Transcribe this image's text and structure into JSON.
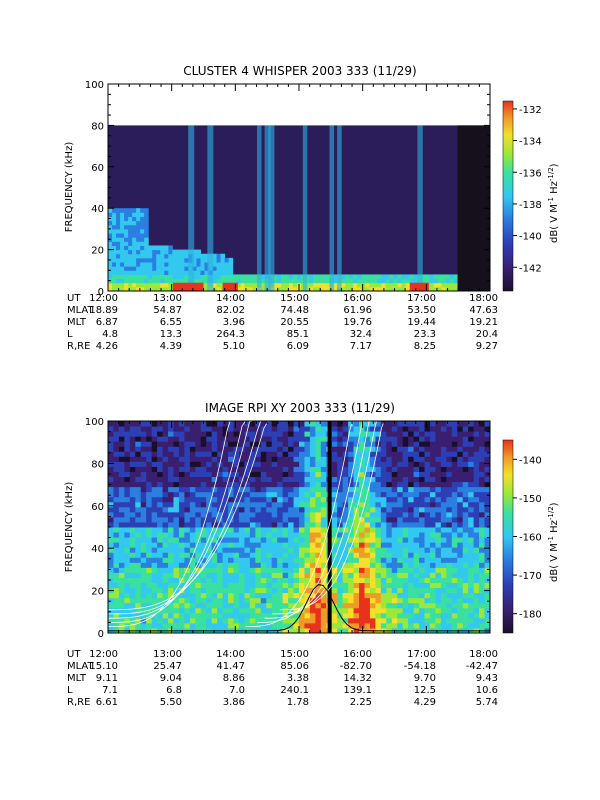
{
  "chart_data": [
    {
      "type": "heatmap",
      "title": "CLUSTER 4 WHISPER 2003 333 (11/29)",
      "ylabel": "FREQUENCY (kHz)",
      "ylim": [
        0,
        100
      ],
      "y_ticks": [
        "0",
        "20",
        "40",
        "60",
        "80",
        "100"
      ],
      "data_top_khz": 80,
      "x_ticks": [
        "12:00",
        "13:00",
        "14:00",
        "15:00",
        "16:00",
        "17:00",
        "18:00"
      ],
      "colorbar": {
        "label": "dB( V M⁻¹ Hz⁻¹ᐟ²)",
        "label_main": "dB( V M",
        "label_sup1": "-1",
        "label_mid": "Hz",
        "label_sup2": "-1/2",
        "label_end": ")",
        "range": [
          -143.5,
          -131.5
        ],
        "ticks": [
          "-132",
          "-134",
          "-136",
          "-138",
          "-140",
          "-142"
        ],
        "tick_values": [
          -132,
          -134,
          -136,
          -138,
          -140,
          -142
        ]
      },
      "ephemeris": {
        "rows": [
          {
            "label": "UT",
            "values": [
              "12:00",
              "13:00",
              "14:00",
              "15:00",
              "16:00",
              "17:00",
              "18:00"
            ]
          },
          {
            "label": "MLAT",
            "values": [
              "18.89",
              "54.87",
              "82.02",
              "74.48",
              "61.96",
              "53.50",
              "47.63"
            ]
          },
          {
            "label": "MLT",
            "values": [
              "6.87",
              "6.55",
              "3.96",
              "20.55",
              "19.76",
              "19.44",
              "19.21"
            ]
          },
          {
            "label": "L",
            "values": [
              "4.8",
              "13.3",
              "264.3",
              "85.1",
              "32.4",
              "23.3",
              "20.4"
            ]
          },
          {
            "label": "R,RE",
            "values": [
              "4.26",
              "4.39",
              "5.10",
              "6.09",
              "7.17",
              "8.25",
              "9.27"
            ]
          }
        ]
      }
    },
    {
      "type": "heatmap",
      "title": "IMAGE RPI XY 2003 333 (11/29)",
      "ylabel": "FREQUENCY (kHz)",
      "ylim": [
        0,
        100
      ],
      "y_ticks": [
        "0",
        "20",
        "40",
        "60",
        "80",
        "100"
      ],
      "x_ticks": [
        "12:00",
        "13:00",
        "14:00",
        "15:00",
        "16:00",
        "17:00",
        "18:00"
      ],
      "colorbar": {
        "label_main": "dB( V M",
        "label_sup1": "-1",
        "label_mid": "Hz",
        "label_sup2": "-1/2",
        "label_end": ")",
        "range": [
          -185,
          -135
        ],
        "ticks": [
          "-140",
          "-150",
          "-160",
          "-170",
          "-180"
        ],
        "tick_values": [
          -140,
          -150,
          -160,
          -170,
          -180
        ]
      },
      "ephemeris": {
        "rows": [
          {
            "label": "UT",
            "values": [
              "12:00",
              "13:00",
              "14:00",
              "15:00",
              "16:00",
              "17:00",
              "18:00"
            ]
          },
          {
            "label": "MLAT",
            "values": [
              "15.10",
              "25.47",
              "41.47",
              "85.06",
              "-82.70",
              "-54.18",
              "-42.47"
            ]
          },
          {
            "label": "MLT",
            "values": [
              "9.11",
              "9.04",
              "8.86",
              "3.38",
              "14.32",
              "9.70",
              "9.43"
            ]
          },
          {
            "label": "L",
            "values": [
              "7.1",
              "6.8",
              "7.0",
              "240.1",
              "139.1",
              "12.5",
              "10.6"
            ]
          },
          {
            "label": "R,RE",
            "values": [
              "6.61",
              "5.50",
              "3.86",
              "1.78",
              "2.25",
              "4.29",
              "5.74"
            ]
          }
        ]
      }
    }
  ],
  "palette": [
    "#1a0f2a",
    "#3a1f70",
    "#2d3fb5",
    "#2a7fe0",
    "#32c8f0",
    "#3ae0a0",
    "#9ae83a",
    "#f2e02a",
    "#f09a28",
    "#e8321e"
  ]
}
